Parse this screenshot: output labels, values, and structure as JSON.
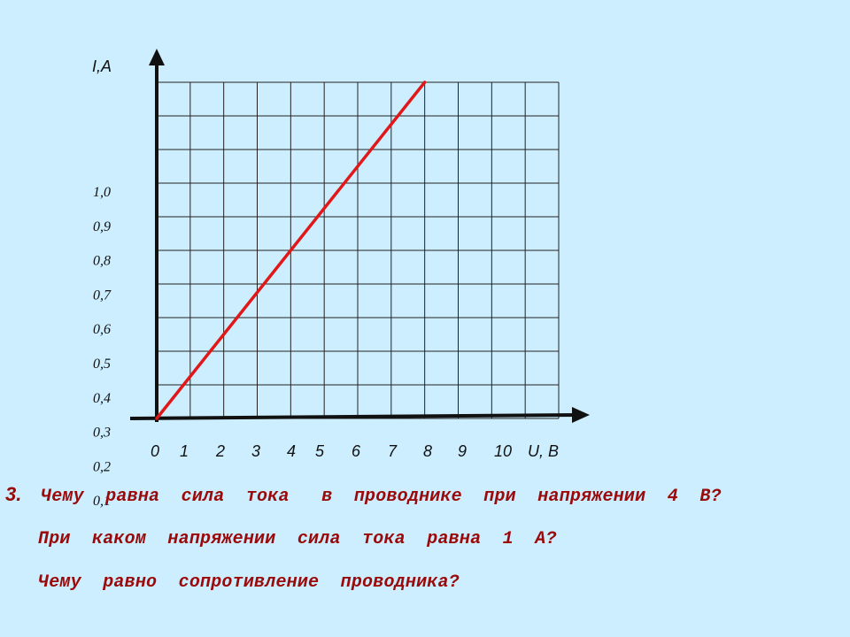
{
  "chart_data": {
    "type": "line",
    "xlabel": "U, В",
    "ylabel": "I,A",
    "x_ticks": [
      "0",
      "1",
      "2",
      "3",
      "4",
      "5",
      "6",
      "7",
      "8",
      "9",
      "10"
    ],
    "y_ticks": [
      "1,0",
      "0,9",
      "0,8",
      "0,7",
      "0,6",
      "0,5",
      "0,4",
      "0,3",
      "0,2",
      "0,1"
    ],
    "xlim": [
      0,
      12
    ],
    "ylim": [
      0,
      10
    ],
    "grid": true,
    "series": [
      {
        "color": "#e01818",
        "x": [
          0,
          8
        ],
        "y": [
          0,
          10
        ]
      }
    ]
  },
  "question": {
    "number": "3.",
    "lines": [
      "Чему  равна  сила  тока   в  проводнике  при  напряжении  4  В?",
      "При  каком  напряжении  сила  тока  равна  1  А?",
      "Чему  равно  сопротивление  проводника?"
    ]
  },
  "colors": {
    "background": "#cdeeff",
    "line": "#e01818",
    "question_text": "#9a0a0a"
  }
}
